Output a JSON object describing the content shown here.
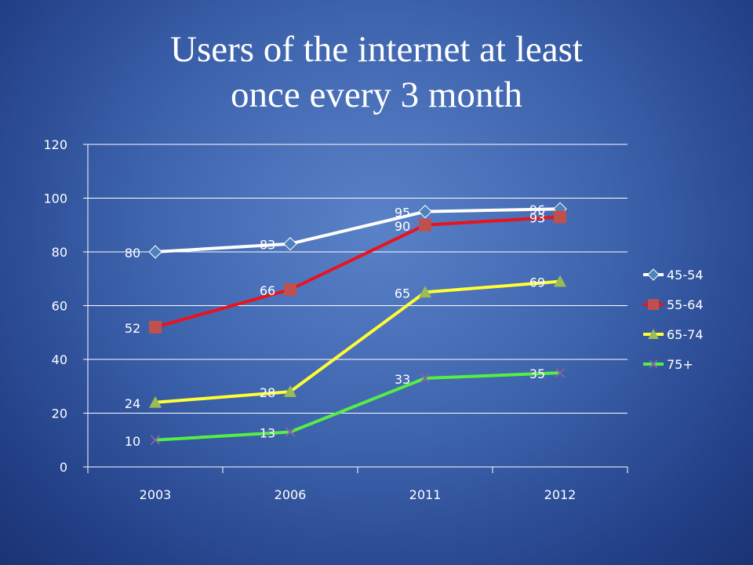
{
  "slide": {
    "title_line1": "Users of the internet at least",
    "title_line2": "once every 3 month"
  },
  "chart_data": {
    "type": "line",
    "categories": [
      "2003",
      "2006",
      "2011",
      "2012"
    ],
    "ylim": [
      0,
      120
    ],
    "yticks": [
      0,
      20,
      40,
      60,
      80,
      100,
      120
    ],
    "grid": true,
    "legend_position": "right",
    "series": [
      {
        "name": "45-54",
        "values": [
          80,
          83,
          95,
          96
        ],
        "color": "#ffffff",
        "marker": "diamond",
        "marker_color": "#4f81bd"
      },
      {
        "name": "55-64",
        "values": [
          52,
          66,
          90,
          93
        ],
        "color": "#e8141c",
        "marker": "square",
        "marker_color": "#c0504d"
      },
      {
        "name": "65-74",
        "values": [
          24,
          28,
          65,
          69
        ],
        "color": "#ffff33",
        "marker": "triangle",
        "marker_color": "#9bbb59"
      },
      {
        "name": "75+",
        "values": [
          10,
          13,
          33,
          35
        ],
        "color": "#55ee44",
        "marker": "x",
        "marker_color": "#8064a2"
      }
    ]
  }
}
